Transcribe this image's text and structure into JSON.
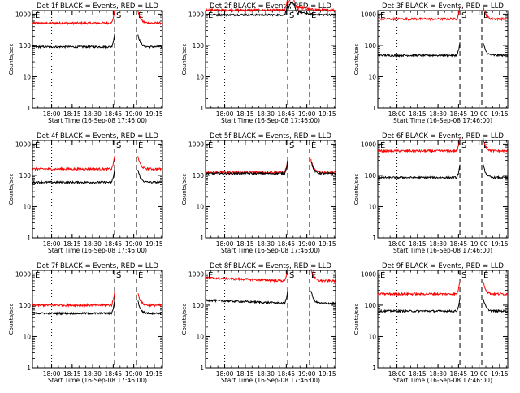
{
  "chart_data": {
    "type": "line",
    "start_time_label": "Start Time (16-Sep-08 17:46:00)",
    "ylabel": "Counts/sec",
    "yscale": "log",
    "ylim": [
      1,
      1300
    ],
    "y_ticks": [
      {
        "v": 1,
        "label": "1"
      },
      {
        "v": 10,
        "label": "10"
      },
      {
        "v": 100,
        "label": "100"
      },
      {
        "v": 1000,
        "label": "1000"
      }
    ],
    "xlim_minutes": [
      0,
      95
    ],
    "x_ticks": [
      {
        "m": 14,
        "label": "18:00"
      },
      {
        "m": 29,
        "label": "18:15"
      },
      {
        "m": 44,
        "label": "18:30"
      },
      {
        "m": 59,
        "label": "18:45"
      },
      {
        "m": 74,
        "label": "19:00"
      },
      {
        "m": 89,
        "label": "19:15"
      }
    ],
    "markers": [
      {
        "m": 14,
        "style": "dotted"
      },
      {
        "m": 60,
        "style": "dashed",
        "label": "S"
      },
      {
        "m": 76,
        "style": "dashed",
        "label": "E"
      },
      {
        "m": 0,
        "style": "none",
        "label": "E"
      }
    ],
    "series_colors": {
      "events": "#000000",
      "lld": "#ff0000"
    },
    "legend": "BLACK = Events, RED = LLD",
    "panels": [
      {
        "id": "1f",
        "title": "Det 1f BLACK = Events, RED = LLD",
        "events": 90,
        "lld": 520,
        "rise": "flat"
      },
      {
        "id": "2f",
        "title": "Det 2f BLACK = Events, RED = LLD",
        "events": 950,
        "lld": 1350,
        "rise": "peak"
      },
      {
        "id": "3f",
        "title": "Det 3f BLACK = Events, RED = LLD",
        "events": 48,
        "lld": 700,
        "rise": "flat"
      },
      {
        "id": "4f",
        "title": "Det 4f BLACK = Events, RED = LLD",
        "events": 60,
        "lld": 160,
        "rise": "flat"
      },
      {
        "id": "5f",
        "title": "Det 5f BLACK = Events, RED = LLD",
        "events": 115,
        "lld": 125,
        "rise": "flat"
      },
      {
        "id": "6f",
        "title": "Det 6f BLACK = Events, RED = LLD",
        "events": 85,
        "lld": 600,
        "rise": "flat"
      },
      {
        "id": "7f",
        "title": "Det 7f BLACK = Events, RED = LLD",
        "events": 55,
        "lld": 100,
        "rise": "flat"
      },
      {
        "id": "8f",
        "title": "Det 8f BLACK = Events, RED = LLD",
        "events": 115,
        "lld": 600,
        "rise": "decline"
      },
      {
        "id": "9f",
        "title": "Det 9f BLACK = Events, RED = LLD",
        "events": 65,
        "lld": 230,
        "rise": "flat"
      }
    ]
  }
}
